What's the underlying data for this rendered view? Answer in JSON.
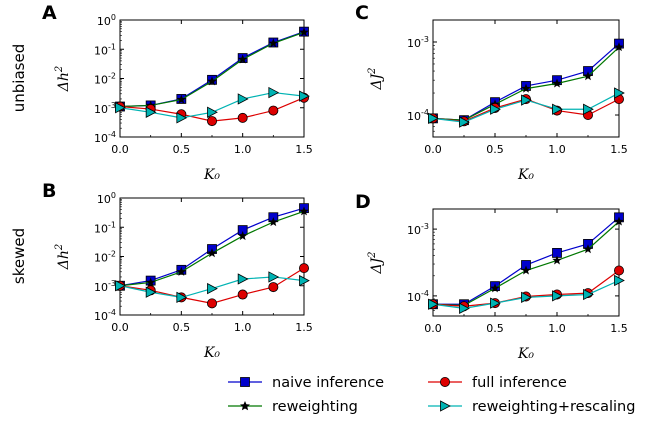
{
  "row_labels": [
    "unbiased",
    "skewed"
  ],
  "legend": {
    "entries": [
      {
        "label": "naive inference",
        "color": "#0000cc",
        "marker": "square"
      },
      {
        "label": "full inference",
        "color": "#dd0000",
        "marker": "circle"
      },
      {
        "label": "reweighting",
        "color": "#007700",
        "marker": "star"
      },
      {
        "label": "reweighting+rescaling",
        "color": "#00b3b3",
        "marker": "triangle-right"
      }
    ]
  },
  "chart_data": [
    {
      "panel": "A",
      "type": "line",
      "row_label": "unbiased",
      "xlabel": "K₀",
      "ylabel_base": "Δh",
      "ylabel_sup": "2",
      "xlim": [
        0,
        1.5
      ],
      "ylim": [
        0.0001,
        1
      ],
      "yscale": "log",
      "xticks": [
        "0.0",
        "0.5",
        "1.0",
        "1.5"
      ],
      "yticks": [
        {
          "v": 0.0001,
          "b": "10",
          "e": "-4"
        },
        {
          "v": 0.001,
          "b": "10",
          "e": "-3"
        },
        {
          "v": 0.01,
          "b": "10",
          "e": "-2"
        },
        {
          "v": 0.1,
          "b": "10",
          "e": "-1"
        },
        {
          "v": 1,
          "b": "10",
          "e": "0"
        }
      ],
      "x": [
        0,
        0.25,
        0.5,
        0.75,
        1.0,
        1.25,
        1.5
      ],
      "series": [
        {
          "color": "#0000cc",
          "marker": "square",
          "values": [
            0.0011,
            0.0012,
            0.002,
            0.009,
            0.05,
            0.17,
            0.4
          ]
        },
        {
          "color": "#007700",
          "marker": "star",
          "values": [
            0.0011,
            0.0012,
            0.0019,
            0.008,
            0.045,
            0.16,
            0.38
          ]
        },
        {
          "color": "#dd0000",
          "marker": "circle",
          "values": [
            0.0011,
            0.0009,
            0.0006,
            0.00035,
            0.00045,
            0.0008,
            0.0022
          ]
        },
        {
          "color": "#00b3b3",
          "marker": "triangle-right",
          "values": [
            0.001,
            0.0007,
            0.00045,
            0.0007,
            0.002,
            0.0033,
            0.0025
          ]
        }
      ]
    },
    {
      "panel": "C",
      "type": "line",
      "row_label": "unbiased",
      "xlabel": "K₀",
      "ylabel_base": "ΔJ",
      "ylabel_sup": "2",
      "xlim": [
        0,
        1.5
      ],
      "ylim": [
        5e-05,
        0.002
      ],
      "yscale": "log",
      "xticks": [
        "0.0",
        "0.5",
        "1.0",
        "1.5"
      ],
      "yticks": [
        {
          "v": 0.0001,
          "b": "10",
          "e": "-4"
        },
        {
          "v": 0.001,
          "b": "10",
          "e": "-3"
        }
      ],
      "x": [
        0,
        0.25,
        0.5,
        0.75,
        1.0,
        1.25,
        1.5
      ],
      "series": [
        {
          "color": "#0000cc",
          "marker": "square",
          "values": [
            9e-05,
            8.5e-05,
            0.00015,
            0.00025,
            0.0003,
            0.0004,
            0.00095
          ]
        },
        {
          "color": "#007700",
          "marker": "star",
          "values": [
            9e-05,
            8.5e-05,
            0.00014,
            0.00023,
            0.00027,
            0.00034,
            0.00085
          ]
        },
        {
          "color": "#dd0000",
          "marker": "circle",
          "values": [
            9e-05,
            8.2e-05,
            0.000125,
            0.000165,
            0.000115,
            0.0001,
            0.000165
          ]
        },
        {
          "color": "#00b3b3",
          "marker": "triangle-right",
          "values": [
            9e-05,
            8e-05,
            0.00012,
            0.00016,
            0.00012,
            0.00012,
            0.0002
          ]
        }
      ]
    },
    {
      "panel": "B",
      "type": "line",
      "row_label": "skewed",
      "xlabel": "K₀",
      "ylabel_base": "Δh",
      "ylabel_sup": "2",
      "xlim": [
        0,
        1.5
      ],
      "ylim": [
        0.0001,
        1
      ],
      "yscale": "log",
      "xticks": [
        "0.0",
        "0.5",
        "1.0",
        "1.5"
      ],
      "yticks": [
        {
          "v": 0.0001,
          "b": "10",
          "e": "-4"
        },
        {
          "v": 0.001,
          "b": "10",
          "e": "-3"
        },
        {
          "v": 0.01,
          "b": "10",
          "e": "-2"
        },
        {
          "v": 0.1,
          "b": "10",
          "e": "-1"
        },
        {
          "v": 1,
          "b": "10",
          "e": "0"
        }
      ],
      "x": [
        0,
        0.25,
        0.5,
        0.75,
        1.0,
        1.25,
        1.5
      ],
      "series": [
        {
          "color": "#0000cc",
          "marker": "square",
          "values": [
            0.001,
            0.0015,
            0.0035,
            0.018,
            0.08,
            0.22,
            0.45
          ]
        },
        {
          "color": "#007700",
          "marker": "star",
          "values": [
            0.001,
            0.0013,
            0.003,
            0.013,
            0.05,
            0.15,
            0.35
          ]
        },
        {
          "color": "#dd0000",
          "marker": "circle",
          "values": [
            0.001,
            0.0007,
            0.0004,
            0.00025,
            0.0005,
            0.0009,
            0.004
          ]
        },
        {
          "color": "#00b3b3",
          "marker": "triangle-right",
          "values": [
            0.001,
            0.0006,
            0.0004,
            0.0008,
            0.0017,
            0.002,
            0.0015
          ]
        }
      ]
    },
    {
      "panel": "D",
      "type": "line",
      "row_label": "skewed",
      "xlabel": "K₀",
      "ylabel_base": "ΔJ",
      "ylabel_sup": "2",
      "xlim": [
        0,
        1.5
      ],
      "ylim": [
        5e-05,
        0.002
      ],
      "yscale": "log",
      "xticks": [
        "0.0",
        "0.5",
        "1.0",
        "1.5"
      ],
      "yticks": [
        {
          "v": 0.0001,
          "b": "10",
          "e": "-4"
        },
        {
          "v": 0.001,
          "b": "10",
          "e": "-3"
        }
      ],
      "x": [
        0,
        0.25,
        0.5,
        0.75,
        1.0,
        1.25,
        1.5
      ],
      "series": [
        {
          "color": "#0000cc",
          "marker": "square",
          "values": [
            7.5e-05,
            7.5e-05,
            0.00014,
            0.00029,
            0.00044,
            0.0006,
            0.0015
          ]
        },
        {
          "color": "#007700",
          "marker": "star",
          "values": [
            7.5e-05,
            7.2e-05,
            0.00013,
            0.00024,
            0.00034,
            0.0005,
            0.0013
          ]
        },
        {
          "color": "#dd0000",
          "marker": "circle",
          "values": [
            7.5e-05,
            7e-05,
            7.8e-05,
            9.8e-05,
            0.000105,
            0.00011,
            0.00024
          ]
        },
        {
          "color": "#00b3b3",
          "marker": "triangle-right",
          "values": [
            7.5e-05,
            6.5e-05,
            7.8e-05,
            9.5e-05,
            0.0001,
            0.000105,
            0.00017
          ]
        }
      ]
    }
  ]
}
